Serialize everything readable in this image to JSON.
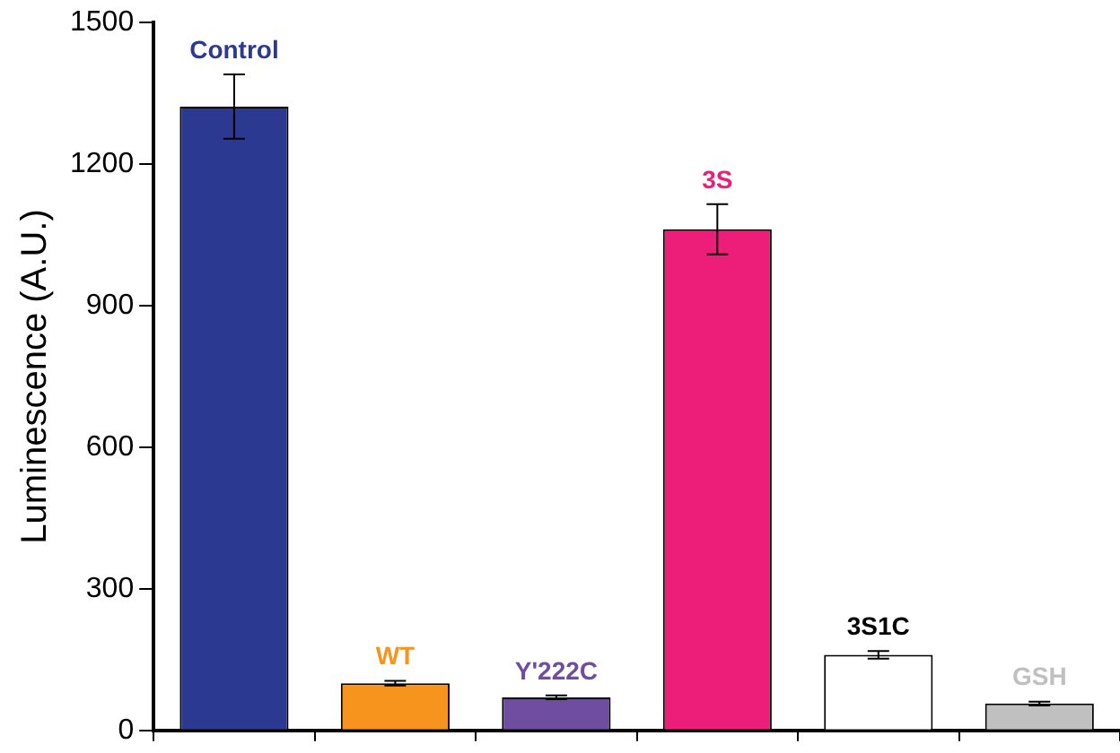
{
  "chart_data": {
    "type": "bar",
    "ylabel": "Luminescence (A.U.)",
    "categories": [
      "Control",
      "WT",
      "Y'222C",
      "3S",
      "3S1C",
      "GSH"
    ],
    "values": [
      1322,
      100,
      70,
      1062,
      160,
      57
    ],
    "errors": [
      68,
      5,
      4,
      53,
      8,
      4
    ],
    "colors": [
      "#2b3990",
      "#f7941d",
      "#6f4ea1",
      "#ec1e79",
      "#ffffff",
      "#c0c0c0"
    ],
    "ylim": [
      0,
      1500
    ],
    "yticks": [
      0,
      300,
      600,
      900,
      1200,
      1500
    ],
    "tick_labels": "y",
    "grid": false,
    "legend": false
  }
}
